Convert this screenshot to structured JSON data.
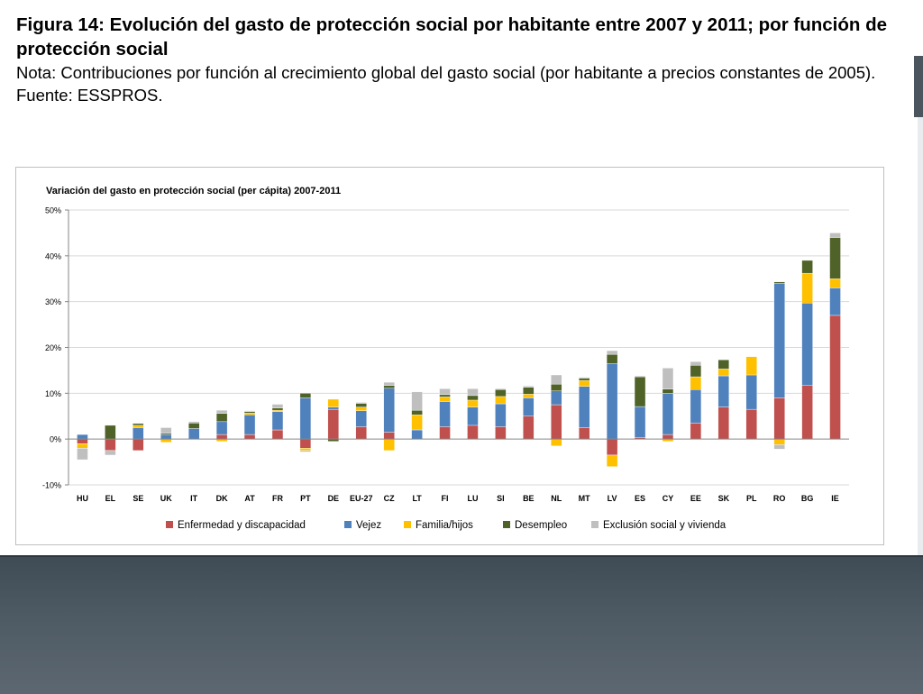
{
  "slide": {
    "title": "Figura 14: Evolución del gasto de protección social por habitante entre 2007 y 2011; por función de protección social",
    "note": "Nota: Contribuciones por función al crecimiento global del gasto social (por habitante a precios constantes de 2005). Fuente: ESSPROS."
  },
  "chart_data": {
    "type": "bar",
    "stacked": true,
    "title": "Variación del gasto en protección social (per cápita) 2007-2011",
    "xlabel": "",
    "ylabel": "",
    "ylim": [
      -10,
      50
    ],
    "yticks": [
      -10,
      0,
      10,
      20,
      30,
      40,
      50
    ],
    "y_tick_labels": [
      "-10%",
      "0%",
      "10%",
      "20%",
      "30%",
      "40%",
      "50%"
    ],
    "grid": true,
    "legend_position": "bottom",
    "categories": [
      "HU",
      "EL",
      "SE",
      "UK",
      "IT",
      "DK",
      "AT",
      "FR",
      "PT",
      "DE",
      "EU-27",
      "CZ",
      "LT",
      "FI",
      "LU",
      "SI",
      "BE",
      "NL",
      "MT",
      "LV",
      "ES",
      "CY",
      "EE",
      "SK",
      "PL",
      "RO",
      "BG",
      "IE"
    ],
    "series": [
      {
        "name": "Enfermedad y discapacidad",
        "color": "#c0504d",
        "values": [
          -1,
          -2.5,
          -2.5,
          0,
          0,
          1,
          1,
          2,
          -2,
          6.5,
          2.7,
          1.5,
          0,
          2.7,
          3,
          2.7,
          5,
          7.5,
          2.5,
          -3.5,
          0.3,
          1,
          3.5,
          7,
          6.5,
          9,
          11.7,
          27
        ]
      },
      {
        "name": "Vejez",
        "color": "#4f81bd",
        "values": [
          1,
          0,
          2.5,
          1,
          2.3,
          2.8,
          4.3,
          4,
          9,
          0.5,
          3.5,
          9.6,
          2,
          5.5,
          4,
          5,
          4,
          3,
          9,
          16.5,
          6.8,
          9,
          7.3,
          6.8,
          7.5,
          25,
          18,
          6
        ]
      },
      {
        "name": "Familia/hijos",
        "color": "#ffc000",
        "values": [
          -1,
          0,
          0.5,
          -0.7,
          0,
          -0.5,
          0.4,
          0.3,
          -0.5,
          1.7,
          0.8,
          -2.5,
          3.3,
          1,
          1.5,
          1.6,
          0.8,
          -1.5,
          1.3,
          -2.5,
          0,
          -0.5,
          2.8,
          1.5,
          4,
          -1.2,
          6.5,
          2
        ]
      },
      {
        "name": "Desempleo",
        "color": "#4f6228",
        "values": [
          0,
          3,
          0.4,
          0.3,
          1.2,
          1.8,
          0.3,
          0.5,
          1,
          -0.5,
          0.8,
          0.6,
          1,
          0.5,
          1,
          1.5,
          1.5,
          1.5,
          0.5,
          2,
          6.5,
          0.9,
          2.5,
          2,
          0,
          0.3,
          2.8,
          9
        ]
      },
      {
        "name": "Exclusión social y vivienda",
        "color": "#bfbfbf",
        "values": [
          -2.5,
          -1,
          0,
          1.2,
          0.3,
          0.7,
          0.2,
          0.8,
          -0.3,
          0,
          0.2,
          0.7,
          4,
          1.3,
          1.5,
          0.2,
          0.3,
          2,
          0.2,
          0.8,
          0.2,
          4.6,
          0.8,
          0,
          0,
          -1,
          0,
          1
        ]
      }
    ]
  }
}
